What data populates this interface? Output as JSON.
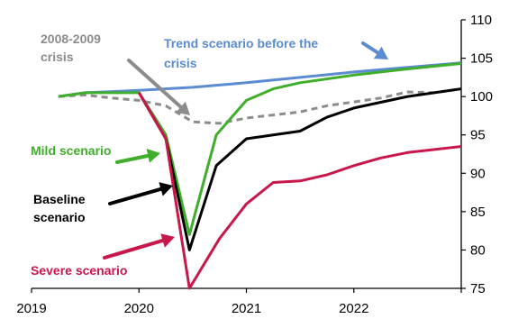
{
  "chart_data": {
    "type": "line",
    "x_ticks": [
      "2019",
      "2020",
      "2021",
      "2022"
    ],
    "y_ticks": [
      "75",
      "80",
      "85",
      "90",
      "95",
      "100",
      "105",
      "110"
    ],
    "ylim": [
      75,
      110
    ],
    "xlim": [
      2019.0,
      2023.0
    ],
    "y_axis_position": "right",
    "grid": false,
    "series": [
      {
        "key": "trend",
        "color": "#5b8bd0",
        "dash": false,
        "points": [
          [
            2019.25,
            100.0
          ],
          [
            2019.5,
            100.5
          ],
          [
            2020.0,
            100.8
          ],
          [
            2020.5,
            101.2
          ],
          [
            2021.0,
            101.8
          ],
          [
            2021.5,
            102.5
          ],
          [
            2022.0,
            103.2
          ],
          [
            2022.5,
            103.8
          ],
          [
            2023.0,
            104.4
          ]
        ]
      },
      {
        "key": "crisis_2008_2009",
        "color": "#8c8c8c",
        "dash": true,
        "points": [
          [
            2019.25,
            100.0
          ],
          [
            2019.5,
            100.2
          ],
          [
            2019.75,
            99.8
          ],
          [
            2020.0,
            99.5
          ],
          [
            2020.25,
            98.8
          ],
          [
            2020.5,
            96.7
          ],
          [
            2020.75,
            96.5
          ],
          [
            2021.0,
            97.2
          ],
          [
            2021.25,
            97.6
          ],
          [
            2021.5,
            98.0
          ],
          [
            2021.75,
            98.8
          ],
          [
            2022.0,
            99.3
          ],
          [
            2022.25,
            99.8
          ],
          [
            2022.5,
            100.6
          ],
          [
            2022.75,
            100.5
          ],
          [
            2023.0,
            101.0
          ]
        ]
      },
      {
        "key": "mild",
        "color": "#3fae2a",
        "dash": false,
        "points": [
          [
            2019.25,
            100.0
          ],
          [
            2019.5,
            100.5
          ],
          [
            2020.0,
            100.5
          ],
          [
            2020.25,
            95.0
          ],
          [
            2020.47,
            82.0
          ],
          [
            2020.72,
            95.0
          ],
          [
            2021.0,
            99.5
          ],
          [
            2021.25,
            101.0
          ],
          [
            2021.5,
            101.8
          ],
          [
            2022.0,
            102.8
          ],
          [
            2022.5,
            103.6
          ],
          [
            2023.0,
            104.3
          ]
        ]
      },
      {
        "key": "baseline",
        "color": "#000000",
        "dash": false,
        "points": [
          [
            2020.0,
            100.5
          ],
          [
            2020.25,
            94.5
          ],
          [
            2020.47,
            80.0
          ],
          [
            2020.72,
            91.0
          ],
          [
            2021.0,
            94.5
          ],
          [
            2021.5,
            95.5
          ],
          [
            2021.75,
            97.3
          ],
          [
            2022.0,
            98.5
          ],
          [
            2022.5,
            100.0
          ],
          [
            2023.0,
            101.0
          ]
        ]
      },
      {
        "key": "severe",
        "color": "#c8174b",
        "dash": false,
        "points": [
          [
            2020.0,
            100.5
          ],
          [
            2020.25,
            94.5
          ],
          [
            2020.47,
            75.0
          ],
          [
            2020.75,
            81.5
          ],
          [
            2021.0,
            86.0
          ],
          [
            2021.25,
            88.8
          ],
          [
            2021.5,
            89.0
          ],
          [
            2021.75,
            89.8
          ],
          [
            2022.0,
            91.0
          ],
          [
            2022.25,
            92.0
          ],
          [
            2022.5,
            92.7
          ],
          [
            2023.0,
            93.5
          ]
        ]
      }
    ],
    "annotations": [
      {
        "key": "crisis_label",
        "lines": [
          "2008-2009",
          "crisis"
        ],
        "color": "#8c8c8c"
      },
      {
        "key": "trend_label",
        "lines": [
          "Trend scenario before the",
          "crisis"
        ],
        "color": "#5b8bd0"
      },
      {
        "key": "mild_label",
        "lines": [
          "Mild scenario"
        ],
        "color": "#3fae2a"
      },
      {
        "key": "baseline_label",
        "lines": [
          "Baseline",
          "scenario"
        ],
        "color": "#000000"
      },
      {
        "key": "severe_label",
        "lines": [
          "Severe scenario"
        ],
        "color": "#c8174b"
      }
    ]
  }
}
